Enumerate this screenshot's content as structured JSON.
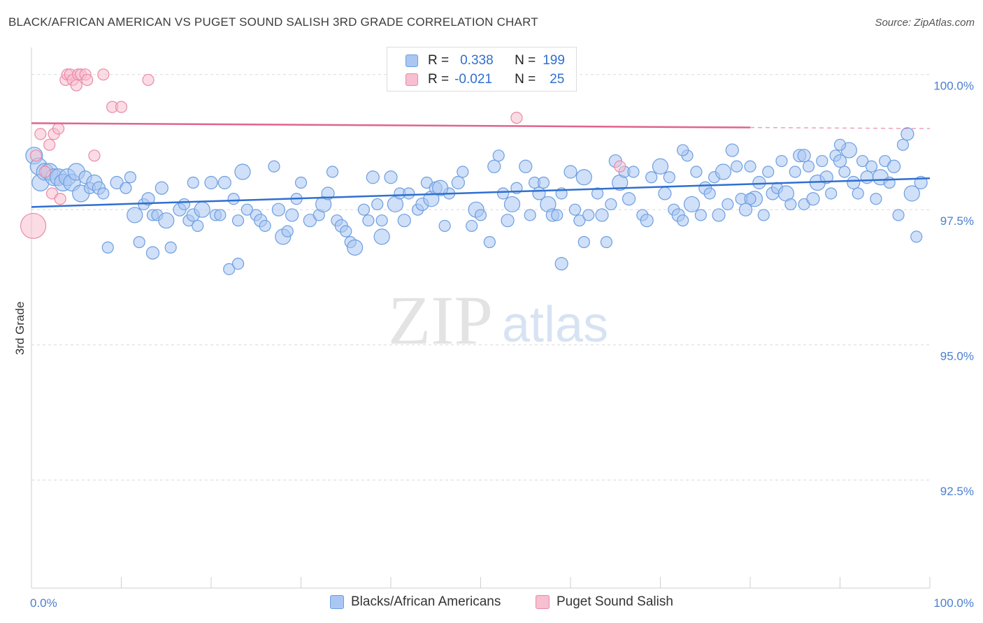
{
  "title": "BLACK/AFRICAN AMERICAN VS PUGET SOUND SALISH 3RD GRADE CORRELATION CHART",
  "source": "Source: ZipAtlas.com",
  "watermark": {
    "zip": "ZIP",
    "atlas": "atlas"
  },
  "colors": {
    "blue_fill": "#a9c7f2",
    "blue_stroke": "#6d9ee0",
    "blue_line": "#2f6fd0",
    "pink_fill": "#f7bfd0",
    "pink_stroke": "#ea8aa8",
    "pink_line": "#e0648e",
    "tick_label": "#4a7fd0",
    "grid": "#d9d9d9"
  },
  "legend": {
    "rows": [
      {
        "r_label": "R =",
        "r_value": "0.338",
        "n_label": "N =",
        "n_value": "199"
      },
      {
        "r_label": "R =",
        "r_value": "-0.021",
        "n_label": "N =",
        "n_value": "25"
      }
    ]
  },
  "bottom_legend": {
    "items": [
      "Blacks/African Americans",
      "Puget Sound Salish"
    ]
  },
  "chart_data": {
    "type": "scatter",
    "title": "BLACK/AFRICAN AMERICAN VS PUGET SOUND SALISH 3RD GRADE CORRELATION CHART",
    "xlabel": "",
    "ylabel": "3rd Grade",
    "xlim": [
      0,
      100
    ],
    "ylim": [
      90.5,
      100.5
    ],
    "x_tick_labels": [
      "0.0%",
      "100.0%"
    ],
    "y_ticks": [
      92.5,
      95.0,
      97.5,
      100.0
    ],
    "y_tick_labels": [
      "92.5%",
      "95.0%",
      "97.5%",
      "100.0%"
    ],
    "grid": "horizontal dashed",
    "legend_position": "top-center",
    "series": [
      {
        "name": "Blacks/African Americans",
        "R": 0.338,
        "N": 199,
        "trend": {
          "x": [
            0,
            100
          ],
          "y": [
            97.55,
            98.08
          ]
        },
        "points": [
          [
            0.3,
            98.5
          ],
          [
            0.8,
            98.3
          ],
          [
            1.0,
            98.0
          ],
          [
            1.5,
            98.2
          ],
          [
            2.0,
            98.2
          ],
          [
            2.5,
            98.1
          ],
          [
            3.0,
            98.1
          ],
          [
            3.5,
            98.0
          ],
          [
            4.0,
            98.1
          ],
          [
            4.5,
            98.0
          ],
          [
            5.0,
            98.2
          ],
          [
            5.5,
            97.8
          ],
          [
            6.0,
            98.1
          ],
          [
            6.5,
            97.9
          ],
          [
            7.0,
            98.0
          ],
          [
            7.5,
            97.9
          ],
          [
            8.0,
            97.8
          ],
          [
            8.5,
            96.8
          ],
          [
            9.5,
            98.0
          ],
          [
            10.5,
            97.9
          ],
          [
            11.0,
            98.1
          ],
          [
            11.5,
            97.4
          ],
          [
            12.0,
            96.9
          ],
          [
            12.5,
            97.6
          ],
          [
            13.0,
            97.7
          ],
          [
            13.5,
            97.4
          ],
          [
            14.0,
            97.4
          ],
          [
            14.5,
            97.9
          ],
          [
            15.0,
            97.3
          ],
          [
            15.5,
            96.8
          ],
          [
            16.5,
            97.5
          ],
          [
            17.0,
            97.6
          ],
          [
            17.5,
            97.3
          ],
          [
            18.0,
            97.4
          ],
          [
            18.5,
            97.2
          ],
          [
            19.0,
            97.5
          ],
          [
            20.0,
            98.0
          ],
          [
            20.5,
            97.4
          ],
          [
            21.0,
            97.4
          ],
          [
            21.5,
            98.0
          ],
          [
            22.5,
            97.7
          ],
          [
            23.0,
            97.3
          ],
          [
            23.5,
            98.2
          ],
          [
            24.0,
            97.5
          ],
          [
            25.0,
            97.4
          ],
          [
            25.5,
            97.3
          ],
          [
            26.0,
            97.2
          ],
          [
            27.0,
            98.3
          ],
          [
            27.5,
            97.5
          ],
          [
            28.0,
            97.0
          ],
          [
            28.5,
            97.1
          ],
          [
            29.0,
            97.4
          ],
          [
            29.5,
            97.7
          ],
          [
            30.0,
            98.0
          ],
          [
            31.0,
            97.3
          ],
          [
            32.0,
            97.4
          ],
          [
            32.5,
            97.6
          ],
          [
            33.0,
            97.8
          ],
          [
            33.5,
            98.2
          ],
          [
            34.0,
            97.3
          ],
          [
            34.5,
            97.2
          ],
          [
            35.0,
            97.1
          ],
          [
            35.5,
            96.9
          ],
          [
            36.0,
            96.8
          ],
          [
            37.0,
            97.5
          ],
          [
            37.5,
            97.3
          ],
          [
            38.0,
            98.1
          ],
          [
            38.5,
            97.6
          ],
          [
            39.0,
            97.3
          ],
          [
            40.0,
            98.1
          ],
          [
            40.5,
            97.6
          ],
          [
            41.0,
            97.8
          ],
          [
            41.5,
            97.3
          ],
          [
            42.0,
            97.8
          ],
          [
            43.0,
            97.5
          ],
          [
            43.5,
            97.6
          ],
          [
            44.0,
            98.0
          ],
          [
            44.5,
            97.7
          ],
          [
            45.0,
            97.9
          ],
          [
            46.0,
            97.2
          ],
          [
            46.5,
            97.8
          ],
          [
            47.5,
            98.0
          ],
          [
            48.0,
            98.2
          ],
          [
            49.0,
            97.2
          ],
          [
            49.5,
            97.5
          ],
          [
            50.0,
            97.4
          ],
          [
            51.0,
            96.9
          ],
          [
            51.5,
            98.3
          ],
          [
            52.0,
            98.5
          ],
          [
            52.5,
            97.8
          ],
          [
            53.0,
            97.3
          ],
          [
            53.5,
            97.6
          ],
          [
            54.0,
            97.9
          ],
          [
            55.0,
            98.3
          ],
          [
            55.5,
            97.4
          ],
          [
            56.0,
            98.0
          ],
          [
            56.5,
            97.8
          ],
          [
            57.0,
            98.0
          ],
          [
            57.5,
            97.6
          ],
          [
            58.0,
            97.4
          ],
          [
            58.5,
            97.4
          ],
          [
            59.0,
            97.8
          ],
          [
            60.0,
            98.2
          ],
          [
            60.5,
            97.5
          ],
          [
            61.0,
            97.3
          ],
          [
            61.5,
            98.1
          ],
          [
            62.0,
            97.4
          ],
          [
            63.0,
            97.8
          ],
          [
            63.5,
            97.4
          ],
          [
            64.0,
            96.9
          ],
          [
            64.5,
            97.6
          ],
          [
            65.0,
            98.4
          ],
          [
            65.5,
            98.0
          ],
          [
            66.0,
            98.2
          ],
          [
            66.5,
            97.7
          ],
          [
            67.0,
            98.2
          ],
          [
            68.0,
            97.4
          ],
          [
            68.5,
            97.3
          ],
          [
            69.0,
            98.1
          ],
          [
            70.0,
            98.3
          ],
          [
            70.5,
            97.8
          ],
          [
            71.0,
            98.1
          ],
          [
            71.5,
            97.5
          ],
          [
            72.0,
            97.4
          ],
          [
            72.5,
            97.3
          ],
          [
            73.0,
            98.5
          ],
          [
            73.5,
            97.6
          ],
          [
            74.0,
            98.2
          ],
          [
            74.5,
            97.4
          ],
          [
            75.0,
            97.9
          ],
          [
            75.5,
            97.8
          ],
          [
            76.0,
            98.1
          ],
          [
            76.5,
            97.4
          ],
          [
            77.0,
            98.2
          ],
          [
            77.5,
            97.6
          ],
          [
            78.0,
            98.6
          ],
          [
            78.5,
            98.3
          ],
          [
            79.0,
            97.7
          ],
          [
            79.5,
            97.5
          ],
          [
            80.0,
            98.3
          ],
          [
            80.5,
            97.7
          ],
          [
            81.0,
            98.0
          ],
          [
            81.5,
            97.4
          ],
          [
            82.0,
            98.2
          ],
          [
            82.5,
            97.8
          ],
          [
            83.0,
            97.9
          ],
          [
            83.5,
            98.4
          ],
          [
            84.0,
            97.8
          ],
          [
            84.5,
            97.6
          ],
          [
            85.0,
            98.2
          ],
          [
            85.5,
            98.5
          ],
          [
            86.0,
            97.6
          ],
          [
            86.5,
            98.3
          ],
          [
            87.0,
            97.7
          ],
          [
            87.5,
            98.0
          ],
          [
            88.0,
            98.4
          ],
          [
            88.5,
            98.1
          ],
          [
            89.0,
            97.8
          ],
          [
            89.5,
            98.5
          ],
          [
            90.0,
            98.4
          ],
          [
            90.5,
            98.2
          ],
          [
            91.0,
            98.6
          ],
          [
            91.5,
            98.0
          ],
          [
            92.0,
            97.8
          ],
          [
            92.5,
            98.4
          ],
          [
            93.0,
            98.1
          ],
          [
            93.5,
            98.3
          ],
          [
            94.0,
            97.7
          ],
          [
            94.5,
            98.1
          ],
          [
            95.0,
            98.4
          ],
          [
            95.5,
            98.0
          ],
          [
            96.0,
            98.3
          ],
          [
            96.5,
            97.4
          ],
          [
            97.0,
            98.7
          ],
          [
            97.5,
            98.9
          ],
          [
            98.0,
            97.8
          ],
          [
            98.5,
            97.0
          ],
          [
            99.0,
            98.0
          ],
          [
            22.0,
            96.4
          ],
          [
            23.0,
            96.5
          ],
          [
            59.0,
            96.5
          ],
          [
            61.5,
            96.9
          ],
          [
            39.0,
            97.0
          ],
          [
            13.5,
            96.7
          ],
          [
            80.0,
            97.7
          ],
          [
            72.5,
            98.6
          ],
          [
            86.0,
            98.5
          ],
          [
            90.0,
            98.7
          ],
          [
            18.0,
            98.0
          ],
          [
            45.5,
            97.9
          ]
        ]
      },
      {
        "name": "Puget Sound Salish",
        "R": -0.021,
        "N": 25,
        "trend": {
          "x": [
            0,
            80
          ],
          "y": [
            99.1,
            99.02
          ],
          "dashed_extension": {
            "x": [
              80,
              100
            ],
            "y": [
              99.02,
              99.0
            ]
          }
        },
        "points": [
          [
            0.2,
            97.2
          ],
          [
            0.5,
            98.5
          ],
          [
            1.0,
            98.9
          ],
          [
            1.5,
            98.2
          ],
          [
            2.0,
            98.7
          ],
          [
            2.3,
            97.8
          ],
          [
            2.5,
            98.9
          ],
          [
            3.0,
            99.0
          ],
          [
            3.2,
            97.7
          ],
          [
            3.8,
            99.9
          ],
          [
            4.0,
            100.0
          ],
          [
            4.3,
            100.0
          ],
          [
            4.6,
            99.9
          ],
          [
            5.0,
            99.8
          ],
          [
            5.2,
            100.0
          ],
          [
            5.5,
            100.0
          ],
          [
            6.0,
            100.0
          ],
          [
            6.2,
            99.9
          ],
          [
            7.0,
            98.5
          ],
          [
            8.0,
            100.0
          ],
          [
            9.0,
            99.4
          ],
          [
            10.0,
            99.4
          ],
          [
            13.0,
            99.9
          ],
          [
            54.0,
            99.2
          ],
          [
            65.5,
            98.3
          ]
        ]
      }
    ]
  }
}
